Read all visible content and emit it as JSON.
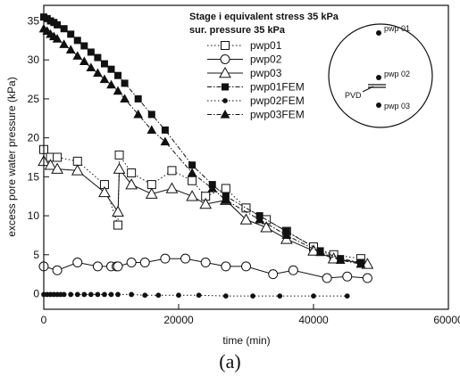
{
  "caption": "(a)",
  "chart_data": {
    "type": "scatter",
    "xlabel": "time (min)",
    "ylabel": "excess pore water pressure (kPa)",
    "xlim": [
      0,
      60000
    ],
    "ylim": [
      -2,
      37
    ],
    "xticks": [
      0,
      20000,
      40000,
      60000
    ],
    "yticks": [
      0,
      5,
      10,
      15,
      20,
      25,
      30,
      35
    ],
    "annotations": [
      "Stage i equivalent stress 35 kPa",
      "sur. pressure 35 kPa"
    ],
    "legend_position": "top-center",
    "inset": {
      "labels": {
        "p1": "pwp 01",
        "p2": "pwp 02",
        "p3": "pwp 03",
        "pvd": "PVD"
      }
    },
    "series": [
      {
        "name": "pwp01",
        "marker": "square-open",
        "line": "dotted",
        "x": [
          0,
          1000,
          2000,
          5000,
          9000,
          11000,
          11200,
          13000,
          16000,
          19000,
          22000,
          24000,
          27000,
          30000,
          33000,
          36000,
          40000,
          43000,
          47000
        ],
        "y": [
          18.5,
          17.5,
          17.5,
          17,
          14,
          8.8,
          17.8,
          15.5,
          14,
          15.8,
          14.5,
          12.5,
          13.5,
          11,
          9.5,
          8,
          6,
          5,
          4.5
        ]
      },
      {
        "name": "pwp02",
        "marker": "circle-open",
        "line": "solid",
        "x": [
          0,
          2000,
          5000,
          8000,
          10000,
          10800,
          11000,
          13000,
          15000,
          18000,
          21000,
          24000,
          27000,
          30000,
          34000,
          37000,
          42000,
          45000,
          48000
        ],
        "y": [
          3.5,
          3,
          4,
          3.5,
          3.5,
          3.5,
          3.5,
          4,
          4,
          4.5,
          4.5,
          4,
          3.5,
          3.5,
          2.5,
          3,
          2,
          2.2,
          2
        ]
      },
      {
        "name": "pwp03",
        "marker": "triangle-open",
        "line": "solid",
        "x": [
          0,
          1000,
          2000,
          5000,
          9000,
          11000,
          11200,
          13000,
          16000,
          19000,
          22000,
          24000,
          27000,
          30000,
          33000,
          36000,
          40000,
          43000,
          48000
        ],
        "y": [
          17,
          16.5,
          16,
          15.8,
          13,
          10.5,
          16,
          14,
          12.8,
          13.5,
          12.5,
          11.5,
          12,
          9.5,
          8.5,
          7,
          5.5,
          4.5,
          3.8
        ]
      },
      {
        "name": "pwp01FEM",
        "marker": "square-filled",
        "line": "dashdot",
        "x": [
          0,
          500,
          1000,
          1500,
          2000,
          3000,
          4000,
          5000,
          6000,
          7000,
          8000,
          9000,
          10000,
          11000,
          12000,
          14000,
          16000,
          18000,
          22000,
          25000,
          27000,
          32000,
          36000,
          41000,
          44000,
          47000
        ],
        "y": [
          35.5,
          35.3,
          35,
          34.8,
          34.5,
          34,
          33.3,
          32.5,
          31.8,
          31,
          30.3,
          29.5,
          28.8,
          28,
          27,
          25,
          23,
          21,
          16.5,
          14,
          12.5,
          10,
          8,
          5.5,
          4.5,
          4
        ]
      },
      {
        "name": "pwp02FEM",
        "marker": "circle-filled",
        "line": "dotted",
        "x": [
          0,
          500,
          1000,
          1500,
          2000,
          2500,
          3000,
          4000,
          5000,
          6000,
          7000,
          8000,
          9000,
          10000,
          11000,
          13000,
          15000,
          17000,
          20000,
          23000,
          27000,
          31000,
          35000,
          40000,
          45000
        ],
        "y": [
          -0.1,
          -0.1,
          -0.1,
          -0.1,
          -0.1,
          -0.1,
          -0.1,
          -0.1,
          -0.1,
          -0.1,
          -0.1,
          -0.1,
          -0.1,
          -0.1,
          -0.1,
          -0.1,
          -0.2,
          -0.2,
          -0.2,
          -0.2,
          -0.3,
          -0.3,
          -0.3,
          -0.3,
          -0.3
        ]
      },
      {
        "name": "pwp03FEM",
        "marker": "triangle-filled",
        "line": "dashdot",
        "x": [
          0,
          500,
          1000,
          1500,
          2000,
          3000,
          4000,
          5000,
          6000,
          7000,
          8000,
          9000,
          10000,
          11000,
          12000,
          14000,
          16000,
          18000,
          22000,
          25000,
          27000,
          32000,
          36000,
          41000,
          44000,
          47000
        ],
        "y": [
          34,
          33.7,
          33.3,
          33,
          32.7,
          32,
          31.3,
          30.5,
          29.8,
          29,
          28.3,
          27.5,
          26.8,
          26,
          25,
          23,
          21,
          19.5,
          15.5,
          13.5,
          12,
          9.5,
          7.5,
          5.3,
          4.3,
          3.8
        ]
      }
    ]
  }
}
